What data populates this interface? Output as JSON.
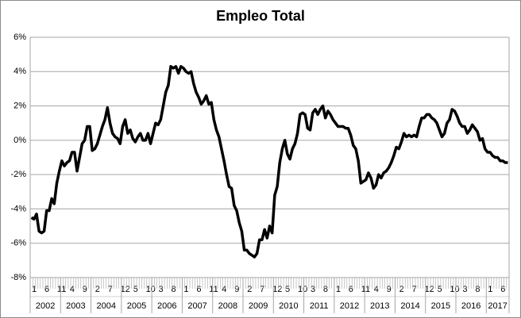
{
  "chart_data": {
    "type": "line",
    "title": "Empleo Total",
    "color": "#000000",
    "grid": true,
    "categories": [
      "1",
      null,
      null,
      null,
      null,
      "6",
      null,
      null,
      null,
      null,
      "11",
      null,
      null,
      null,
      null,
      "4",
      null,
      null,
      null,
      null,
      "9",
      null,
      null,
      null,
      null,
      "2",
      null,
      null,
      null,
      null,
      "7",
      null,
      null,
      null,
      null,
      "12",
      null,
      null,
      null,
      null,
      "5",
      null,
      null,
      null,
      null,
      "10",
      null,
      null,
      null,
      null,
      "3",
      null,
      null,
      null,
      null,
      "8",
      null,
      null,
      null,
      null,
      "1",
      null,
      null,
      null,
      null,
      "6",
      null,
      null,
      null,
      null,
      "11",
      null,
      null,
      null,
      null,
      "4",
      null,
      null,
      null,
      null,
      "9",
      null,
      null,
      null,
      null,
      "2",
      null,
      null,
      null,
      null,
      "7",
      null,
      null,
      null,
      null,
      "12",
      null,
      null,
      null,
      null,
      "5",
      null,
      null,
      null,
      null,
      "10",
      null,
      null,
      null,
      null,
      "3",
      null,
      null,
      null,
      null,
      "8",
      null,
      null,
      null,
      null,
      "1",
      null,
      null,
      null,
      null,
      "6",
      null,
      null,
      null,
      null,
      "11",
      null,
      null,
      null,
      null,
      "4",
      null,
      null,
      null,
      null,
      "9",
      null,
      null,
      null,
      null,
      "2",
      null,
      null,
      null,
      null,
      "7",
      null,
      null,
      null,
      null,
      "12",
      null,
      null,
      null,
      null,
      "5",
      null,
      null,
      null,
      null,
      "10",
      null,
      null,
      null,
      null,
      "3",
      null,
      null,
      null,
      null,
      "8",
      null,
      null,
      null,
      null,
      "1",
      null,
      null,
      null,
      null,
      "6",
      null,
      null,
      null
    ],
    "category_groups": [
      "2002",
      "2003",
      "2004",
      "2005",
      "2006",
      "2007",
      "2008",
      "2009",
      "2010",
      "2011",
      "2012",
      "2013",
      "2014",
      "2015",
      "2016",
      "2017"
    ],
    "values": [
      -4.5,
      -4.6,
      -4.3,
      -5.3,
      -5.4,
      -5.3,
      -4.1,
      -4.1,
      -3.4,
      -3.7,
      -2.5,
      -1.8,
      -1.2,
      -1.5,
      -1.3,
      -1.2,
      -0.7,
      -0.7,
      -1.8,
      -1.0,
      -0.2,
      0.0,
      0.8,
      0.8,
      -0.6,
      -0.5,
      -0.2,
      0.3,
      0.8,
      1.2,
      1.9,
      1.0,
      0.4,
      0.2,
      0.1,
      -0.2,
      0.8,
      1.2,
      0.4,
      0.6,
      0.1,
      -0.1,
      0.2,
      0.4,
      0.0,
      0.0,
      0.4,
      -0.2,
      0.4,
      1.0,
      0.9,
      1.2,
      2.0,
      2.8,
      3.2,
      4.3,
      4.2,
      4.3,
      3.9,
      4.3,
      4.2,
      4.0,
      3.9,
      4.0,
      3.3,
      2.8,
      2.5,
      2.1,
      2.3,
      2.6,
      2.1,
      2.2,
      1.2,
      0.6,
      0.2,
      -0.5,
      -1.2,
      -2.0,
      -2.7,
      -2.8,
      -3.8,
      -4.1,
      -4.8,
      -5.3,
      -6.4,
      -6.4,
      -6.6,
      -6.7,
      -6.8,
      -6.6,
      -5.8,
      -5.8,
      -5.2,
      -5.7,
      -5.0,
      -5.4,
      -3.2,
      -2.7,
      -1.3,
      -0.5,
      0.0,
      -0.8,
      -1.1,
      -0.5,
      -0.2,
      0.4,
      1.5,
      1.6,
      1.5,
      0.7,
      0.6,
      1.6,
      1.8,
      1.5,
      1.8,
      2.0,
      1.3,
      1.7,
      1.5,
      1.2,
      1.0,
      0.8,
      0.8,
      0.8,
      0.7,
      0.7,
      0.3,
      -0.3,
      -0.5,
      -1.2,
      -2.5,
      -2.4,
      -2.3,
      -1.9,
      -2.2,
      -2.8,
      -2.6,
      -2.0,
      -2.2,
      -1.9,
      -1.8,
      -1.6,
      -1.3,
      -0.9,
      -0.4,
      -0.5,
      -0.1,
      0.4,
      0.2,
      0.3,
      0.2,
      0.3,
      0.2,
      0.8,
      1.3,
      1.3,
      1.5,
      1.5,
      1.3,
      1.2,
      1.0,
      0.6,
      0.2,
      0.4,
      1.0,
      1.2,
      1.8,
      1.7,
      1.4,
      1.0,
      0.8,
      0.8,
      0.4,
      0.6,
      0.9,
      0.7,
      0.5,
      0.0,
      0.1,
      -0.5,
      -0.7,
      -0.7,
      -0.9,
      -1.0,
      -1.0,
      -1.2,
      -1.2,
      -1.3,
      -1.3
    ],
    "ylim": [
      -8,
      6
    ],
    "yticks": [
      {
        "value": -8,
        "label": "-8%"
      },
      {
        "value": -6,
        "label": "-6%"
      },
      {
        "value": -4,
        "label": "-4%"
      },
      {
        "value": -2,
        "label": "-2%"
      },
      {
        "value": 0,
        "label": "0%"
      },
      {
        "value": 2,
        "label": "2%"
      },
      {
        "value": 4,
        "label": "4%"
      },
      {
        "value": 6,
        "label": "6%"
      }
    ]
  }
}
